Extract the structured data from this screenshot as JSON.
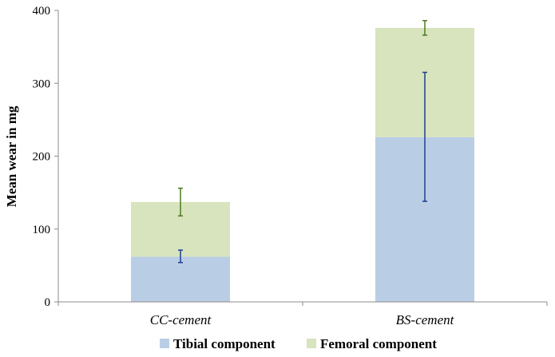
{
  "chart_data": {
    "type": "bar",
    "stacked": true,
    "categories": [
      "CC-cement",
      "BS-cement"
    ],
    "ylabel": "Mean wear in mg",
    "xlabel": "",
    "ylim": [
      0,
      400
    ],
    "yticks": [
      0,
      100,
      200,
      300,
      400
    ],
    "legend_position": "bottom",
    "grid": false,
    "series": [
      {
        "name": "Tibial component",
        "color": "#b9cde5",
        "error_color": "#1f3f8f",
        "values": [
          62,
          226
        ],
        "error_low": [
          54,
          138
        ],
        "error_high": [
          71,
          315
        ]
      },
      {
        "name": "Femoral component",
        "color": "#d7e4bd",
        "error_color": "#4f7a1e",
        "values": [
          75,
          150
        ],
        "totals": [
          137,
          376
        ],
        "error_low": [
          118,
          366
        ],
        "error_high": [
          156,
          386
        ]
      }
    ]
  }
}
